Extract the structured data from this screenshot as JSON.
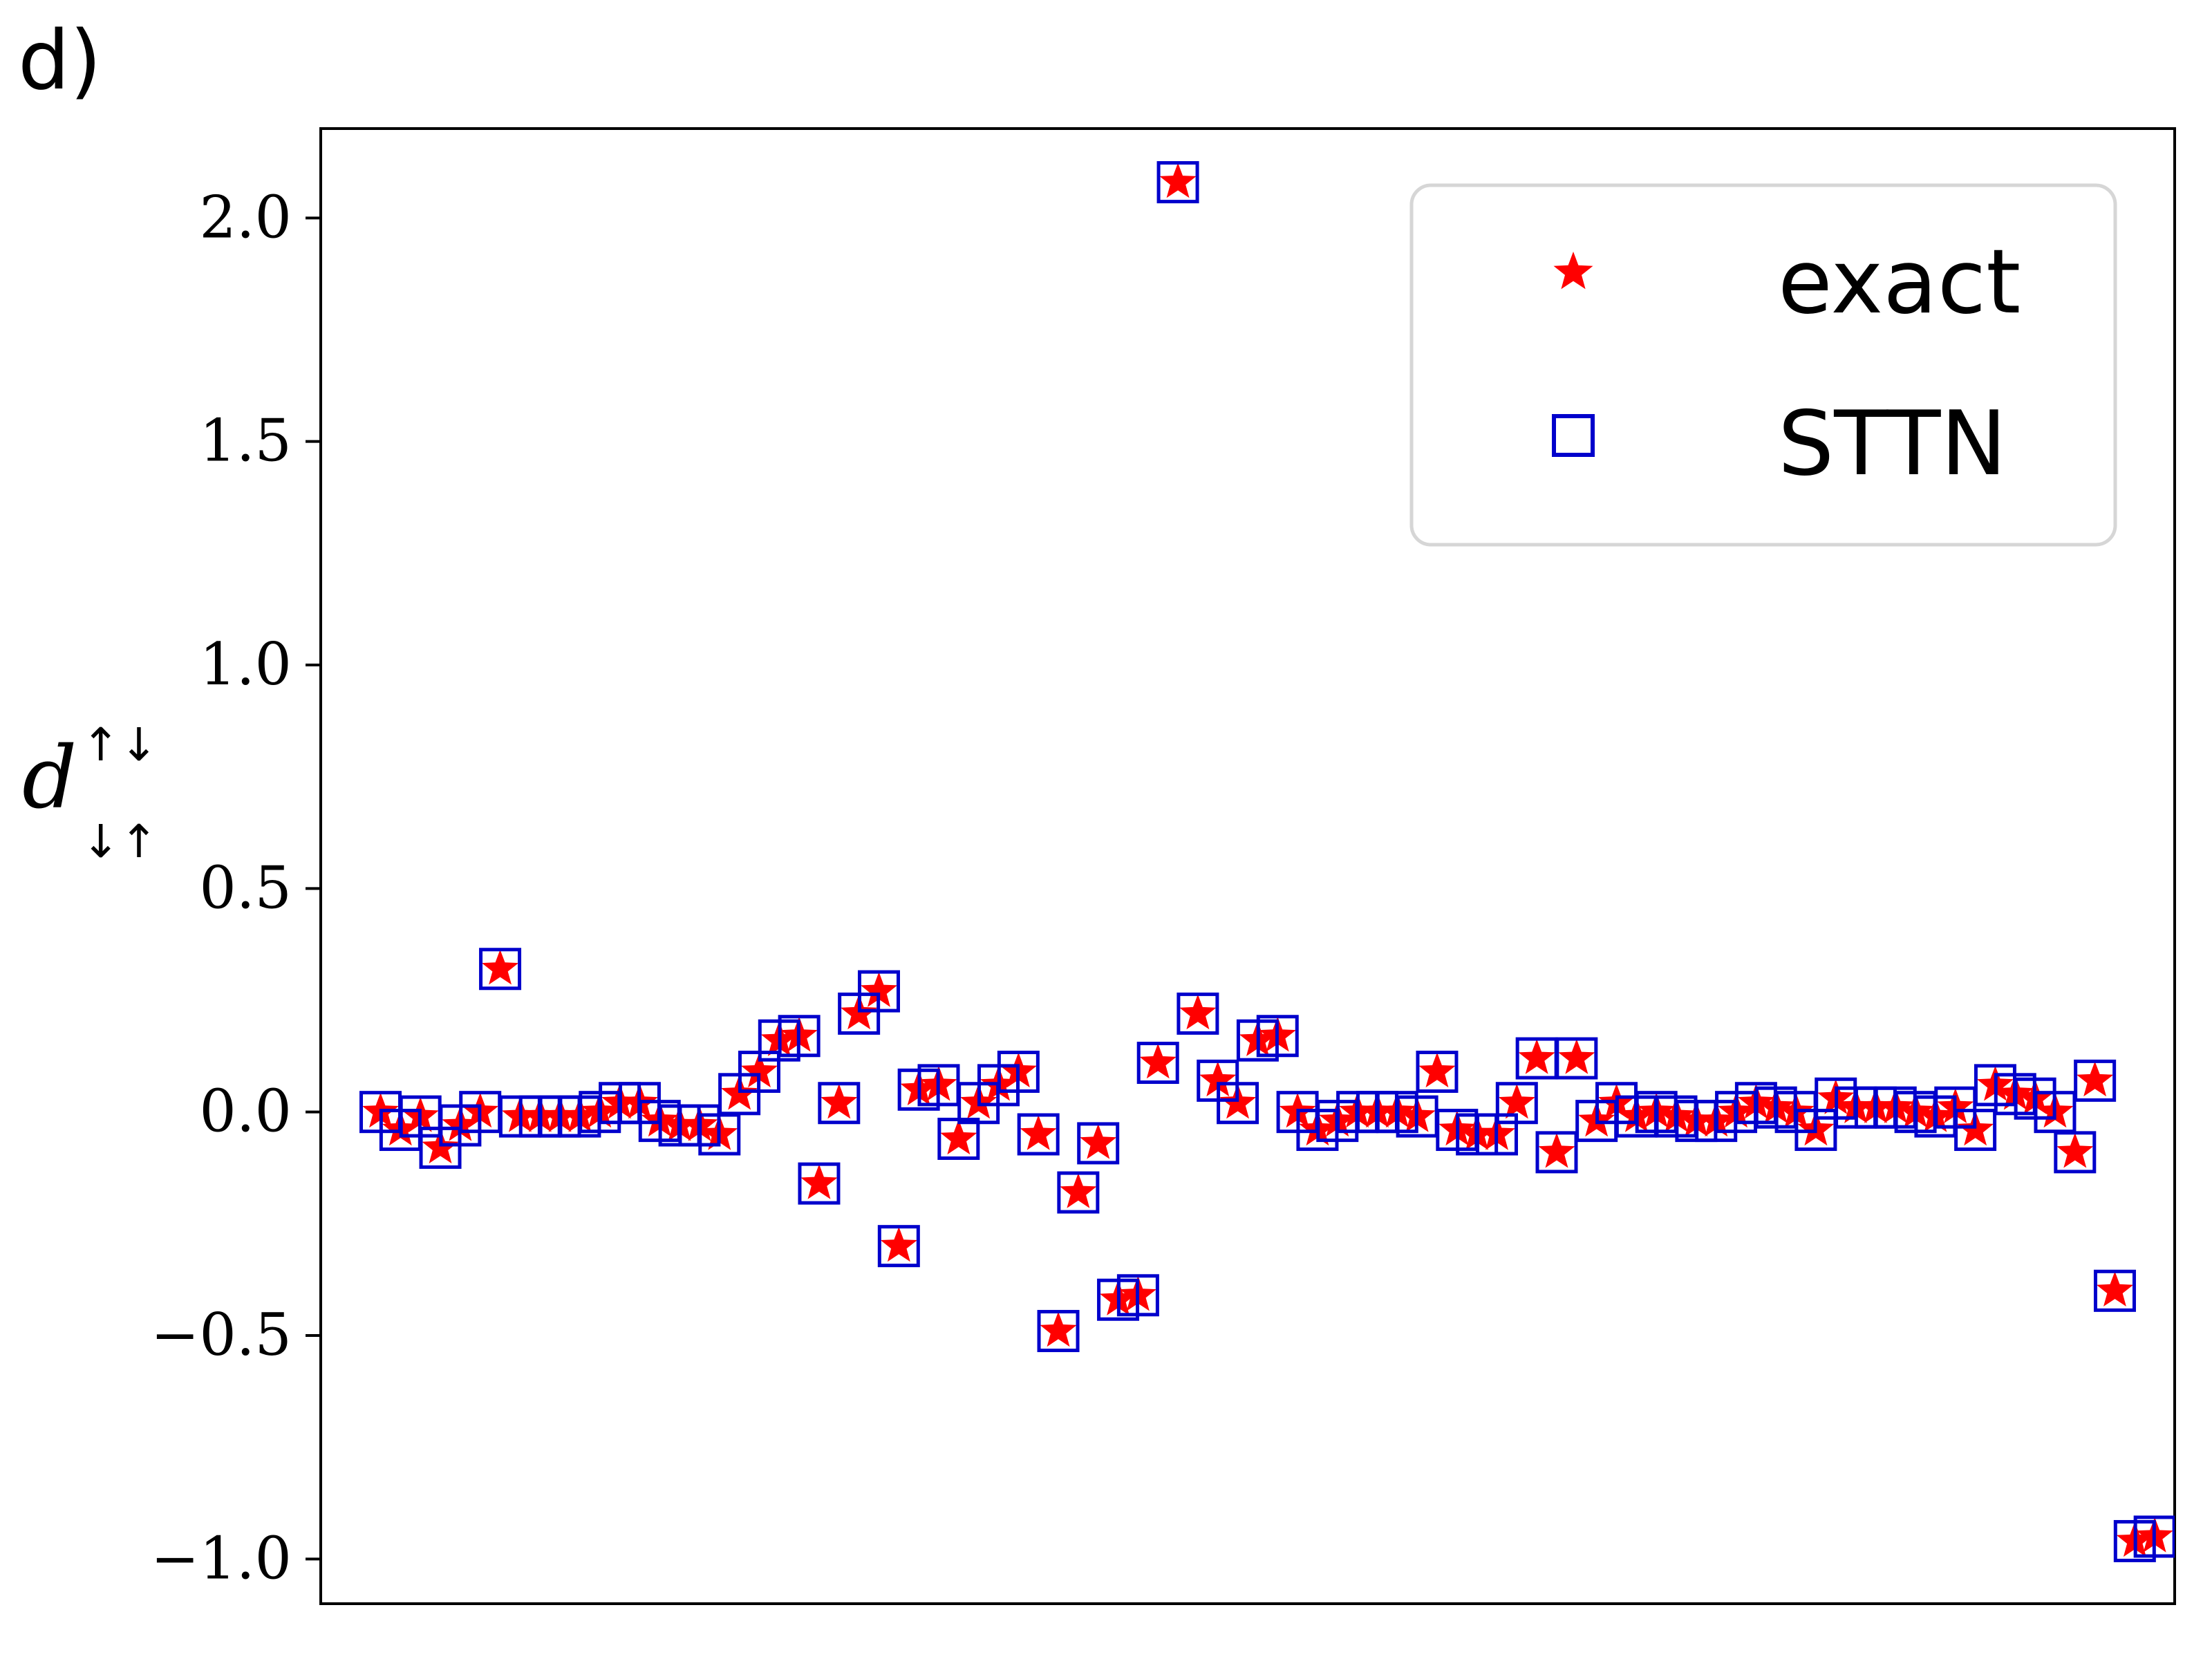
{
  "panel_label": "d)",
  "chart_data": {
    "type": "scatter",
    "title": "",
    "xlabel": "",
    "ylabel": {
      "base": "d",
      "superscript": "↑↓",
      "subscript": "↓↑"
    },
    "ylim": [
      -1.1,
      2.2
    ],
    "xlim": [
      -3,
      90
    ],
    "yticks": [
      -1.0,
      -0.5,
      0.0,
      0.5,
      1.0,
      1.5,
      2.0
    ],
    "ytick_labels": [
      "−1.0",
      "−0.5",
      "0.0",
      "0.5",
      "1.0",
      "1.5",
      "2.0"
    ],
    "xticks_visible": false,
    "grid": false,
    "legend": {
      "placement": "top-right",
      "entries": [
        {
          "label": "exact",
          "marker": "star",
          "color": "#ff0000"
        },
        {
          "label": "STTN",
          "marker": "square-open",
          "color": "#0000cc"
        }
      ]
    },
    "colors": {
      "exact": "#ff0000",
      "sttn": "#0000cc"
    },
    "x": [
      0,
      1,
      2,
      3,
      4,
      5,
      6,
      7,
      8,
      9,
      10,
      11,
      12,
      13,
      14,
      15,
      16,
      17,
      18,
      19,
      20,
      21,
      22,
      23,
      24,
      25,
      26,
      27,
      28,
      29,
      30,
      31,
      32,
      33,
      34,
      35,
      36,
      37,
      38,
      39,
      40,
      41,
      42,
      43,
      44,
      45,
      46,
      47,
      48,
      49,
      50,
      51,
      52,
      53,
      54,
      55,
      56,
      57,
      58,
      59,
      60,
      61,
      62,
      63,
      64,
      65,
      66,
      67,
      68,
      69,
      70,
      71,
      72,
      73,
      74,
      75,
      76,
      77,
      78,
      79,
      80,
      81,
      82,
      83,
      84,
      85,
      86,
      87,
      88,
      89
    ],
    "series": [
      {
        "name": "exact",
        "values": [
          0.0,
          -0.04,
          -0.01,
          -0.08,
          -0.03,
          0.0,
          0.32,
          -0.01,
          -0.01,
          -0.01,
          -0.01,
          0.0,
          0.02,
          0.02,
          -0.02,
          -0.03,
          -0.03,
          -0.05,
          0.04,
          0.09,
          0.16,
          0.17,
          -0.16,
          0.02,
          0.22,
          0.27,
          -0.3,
          0.05,
          0.06,
          -0.06,
          0.02,
          0.06,
          0.09,
          -0.05,
          -0.49,
          -0.18,
          -0.07,
          -0.42,
          -0.41,
          0.11,
          2.08,
          0.22,
          0.07,
          0.02,
          0.16,
          0.17,
          0.0,
          -0.04,
          -0.02,
          0.0,
          0.0,
          0.0,
          -0.01,
          0.09,
          -0.04,
          -0.05,
          -0.05,
          0.02,
          0.12,
          -0.09,
          0.12,
          -0.02,
          0.02,
          -0.01,
          0.0,
          -0.01,
          -0.02,
          -0.02,
          0.0,
          0.02,
          0.01,
          0.0,
          -0.04,
          0.03,
          0.01,
          0.01,
          0.01,
          0.0,
          -0.01,
          0.01,
          -0.04,
          0.06,
          0.04,
          0.03,
          0.0,
          -0.09,
          0.07,
          -0.4,
          -0.96,
          -0.95
        ]
      },
      {
        "name": "STTN",
        "values": [
          0.0,
          -0.04,
          -0.01,
          -0.08,
          -0.03,
          0.0,
          0.32,
          -0.01,
          -0.01,
          -0.01,
          -0.01,
          0.0,
          0.02,
          0.02,
          -0.02,
          -0.03,
          -0.03,
          -0.05,
          0.04,
          0.09,
          0.16,
          0.17,
          -0.16,
          0.02,
          0.22,
          0.27,
          -0.3,
          0.05,
          0.06,
          -0.06,
          0.02,
          0.06,
          0.09,
          -0.05,
          -0.49,
          -0.18,
          -0.07,
          -0.42,
          -0.41,
          0.11,
          2.08,
          0.22,
          0.07,
          0.02,
          0.16,
          0.17,
          0.0,
          -0.04,
          -0.02,
          0.0,
          0.0,
          0.0,
          -0.01,
          0.09,
          -0.04,
          -0.05,
          -0.05,
          0.02,
          0.12,
          -0.09,
          0.12,
          -0.02,
          0.02,
          -0.01,
          0.0,
          -0.01,
          -0.02,
          -0.02,
          0.0,
          0.02,
          0.01,
          0.0,
          -0.04,
          0.03,
          0.01,
          0.01,
          0.01,
          0.0,
          -0.01,
          0.01,
          -0.04,
          0.06,
          0.04,
          0.03,
          0.0,
          -0.09,
          0.07,
          -0.4,
          -0.96,
          -0.95
        ]
      }
    ]
  }
}
